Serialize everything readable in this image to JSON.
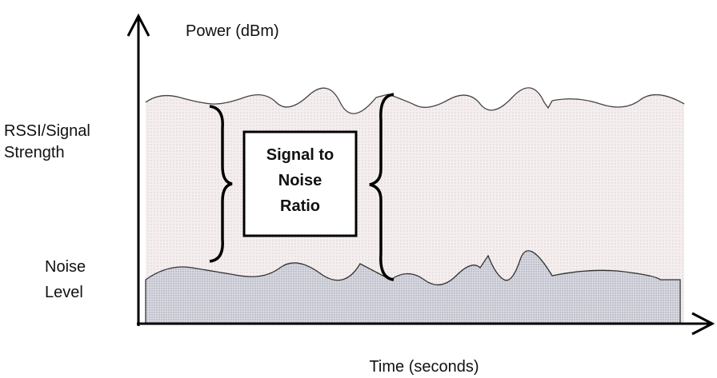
{
  "axes": {
    "y_label": "Power (dBm)",
    "x_label": "Time (seconds)"
  },
  "labels": {
    "signal": [
      "RSSI/Signal",
      "Strength"
    ],
    "noise": [
      "Noise",
      "Level"
    ]
  },
  "box": {
    "lines": [
      "Signal to",
      "Noise",
      "Ratio"
    ]
  }
}
